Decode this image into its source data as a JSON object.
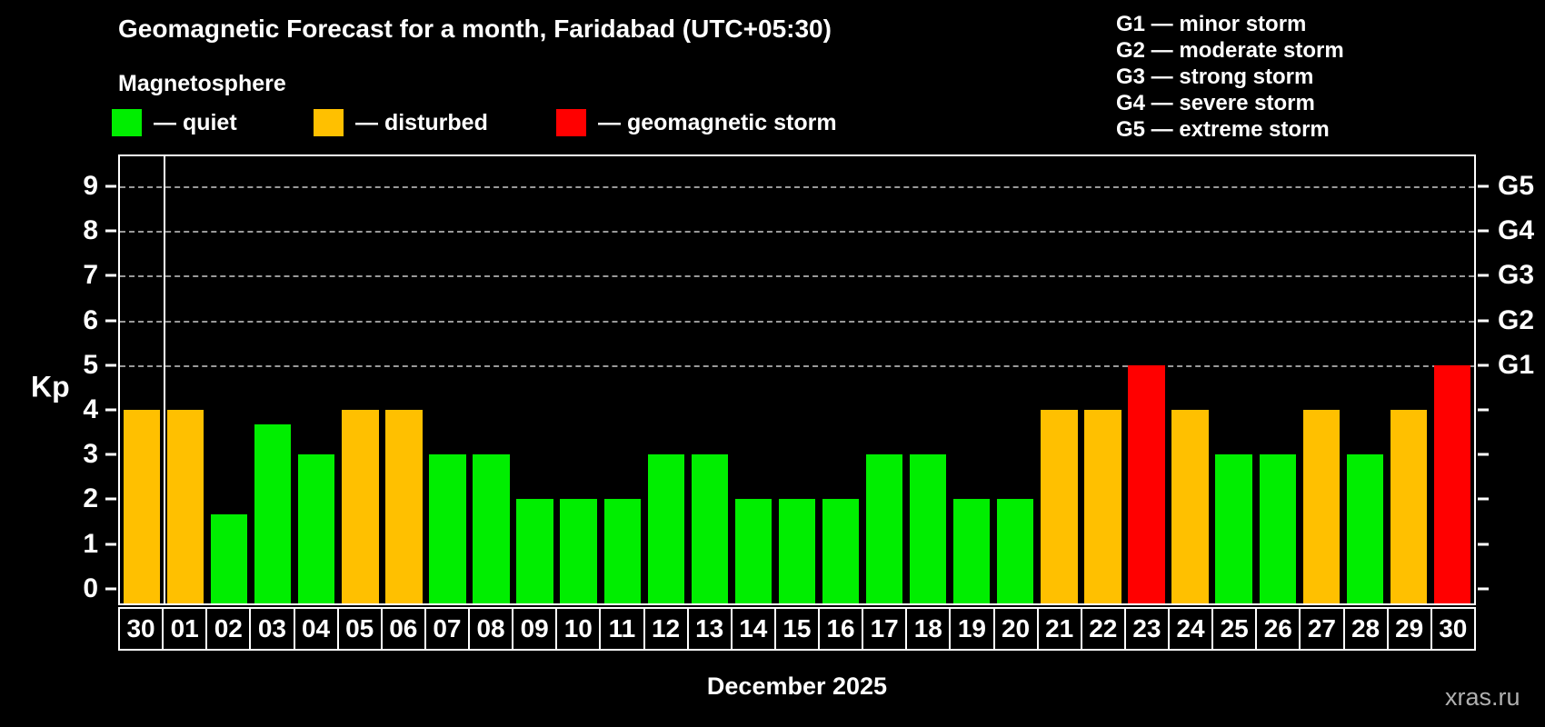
{
  "title": "Geomagnetic Forecast for a month, Faridabad (UTC+05:30)",
  "subtitle": "Magnetosphere",
  "legend": {
    "items": [
      {
        "key": "quiet",
        "label": "— quiet",
        "color": "#00ee00",
        "x": 123
      },
      {
        "key": "disturbed",
        "label": "— disturbed",
        "color": "#ffc000",
        "x": 345
      },
      {
        "key": "storm",
        "label": "— geomagnetic storm",
        "color": "#ff0000",
        "x": 612
      }
    ]
  },
  "storm_scale": [
    "G1 — minor storm",
    "G2 — moderate storm",
    "G3 — strong storm",
    "G4 — severe storm",
    "G5 — extreme storm"
  ],
  "axes": {
    "y_label": "Kp",
    "y_ticks": [
      0,
      1,
      2,
      3,
      4,
      5,
      6,
      7,
      8,
      9
    ],
    "gridlines": [
      5,
      6,
      7,
      8,
      9
    ],
    "right_labels": [
      {
        "value": 9,
        "label": "G5"
      },
      {
        "value": 8,
        "label": "G4"
      },
      {
        "value": 7,
        "label": "G3"
      },
      {
        "value": 6,
        "label": "G2"
      },
      {
        "value": 5,
        "label": "G1"
      }
    ],
    "x_label": "December 2025"
  },
  "watermark": "xras.ru",
  "chart_data": {
    "type": "bar",
    "title": "Geomagnetic Forecast for a month, Faridabad (UTC+05:30)",
    "xlabel": "December 2025",
    "ylabel": "Kp",
    "y_min": -0.33,
    "y_max": 9.67,
    "grid": "horizontal-dashed-at-5-to-9",
    "legend_position": "top-left",
    "separator_after_index": 0,
    "categories": [
      "30",
      "01",
      "02",
      "03",
      "04",
      "05",
      "06",
      "07",
      "08",
      "09",
      "10",
      "11",
      "12",
      "13",
      "14",
      "15",
      "16",
      "17",
      "18",
      "19",
      "20",
      "21",
      "22",
      "23",
      "24",
      "25",
      "26",
      "27",
      "28",
      "29",
      "30"
    ],
    "values": [
      4,
      4,
      1.67,
      3.67,
      3,
      4,
      4,
      3,
      3,
      2,
      2,
      2,
      3,
      3,
      2,
      2,
      2,
      3,
      3,
      2,
      2,
      4,
      4,
      5,
      4,
      3,
      3,
      4,
      3,
      4,
      5
    ],
    "statuses": [
      "disturbed",
      "disturbed",
      "quiet",
      "quiet",
      "quiet",
      "disturbed",
      "disturbed",
      "quiet",
      "quiet",
      "quiet",
      "quiet",
      "quiet",
      "quiet",
      "quiet",
      "quiet",
      "quiet",
      "quiet",
      "quiet",
      "quiet",
      "quiet",
      "quiet",
      "disturbed",
      "disturbed",
      "storm",
      "disturbed",
      "quiet",
      "quiet",
      "disturbed",
      "quiet",
      "disturbed",
      "storm"
    ]
  }
}
